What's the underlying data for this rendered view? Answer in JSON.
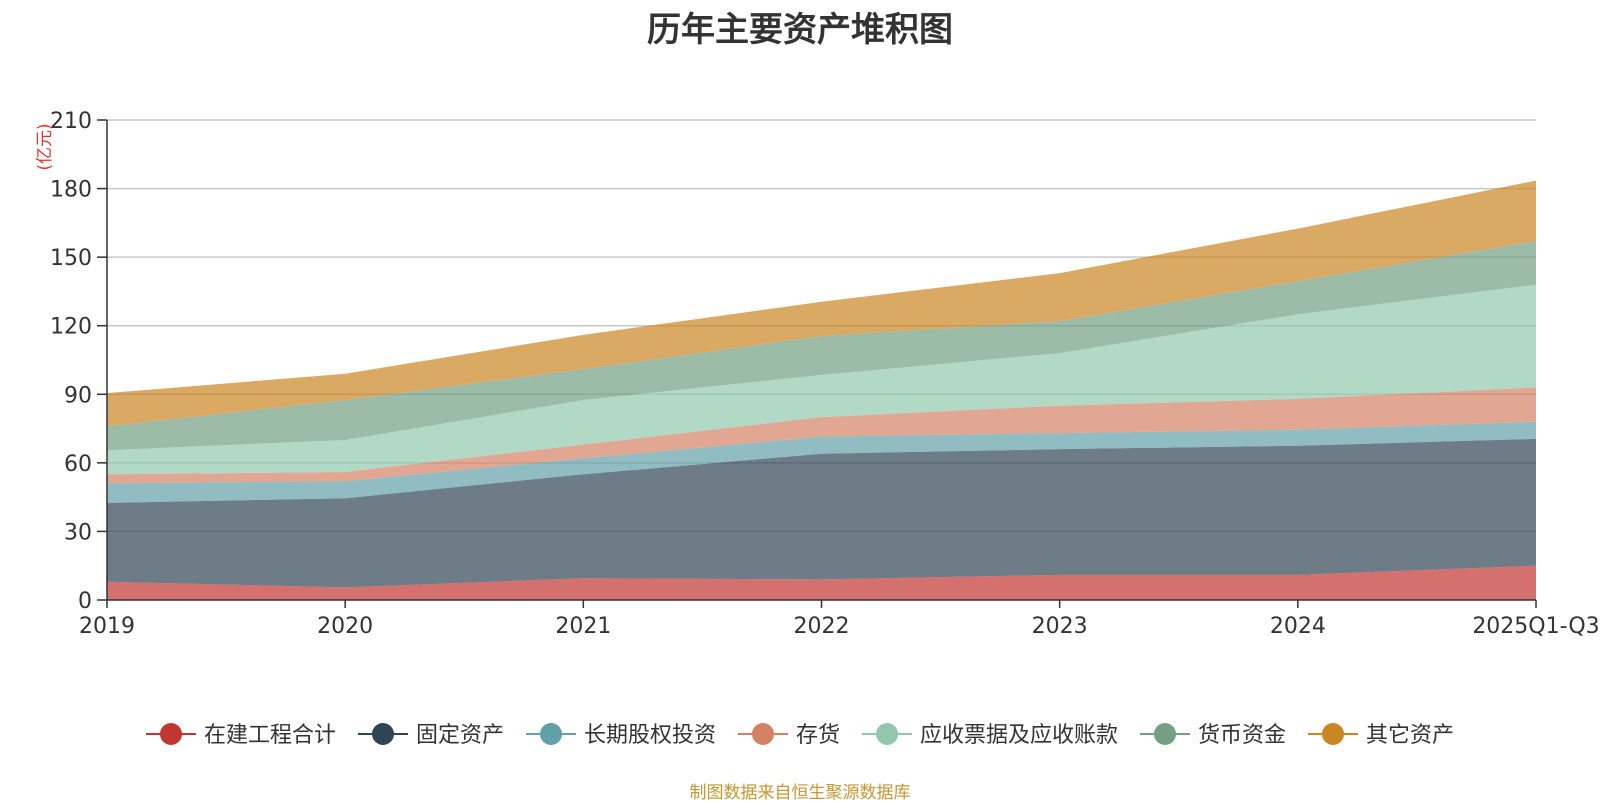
{
  "chart_data": {
    "type": "area",
    "stacked": true,
    "title": "历年主要资产堆积图",
    "unit_label": "(亿元)",
    "categories": [
      "2019",
      "2020",
      "2021",
      "2022",
      "2023",
      "2024",
      "2025Q1-Q3"
    ],
    "ylim": [
      0,
      210
    ],
    "yticks": [
      0,
      30,
      60,
      90,
      120,
      150,
      180,
      210
    ],
    "grid": true,
    "legend_position": "bottom",
    "series": [
      {
        "name": "在建工程合计",
        "color": "#c23531",
        "values": [
          8,
          5.5,
          9.5,
          9,
          11,
          11,
          15
        ]
      },
      {
        "name": "固定资产",
        "color": "#2f4554",
        "values": [
          34.5,
          39,
          45.5,
          55,
          55,
          56.5,
          55.5
        ]
      },
      {
        "name": "长期股权投资",
        "color": "#61a0a8",
        "values": [
          8.5,
          7.5,
          7,
          7.5,
          7,
          7,
          7.5
        ]
      },
      {
        "name": "存货",
        "color": "#d48265",
        "values": [
          4,
          4,
          6,
          8.5,
          12,
          13.5,
          15
        ]
      },
      {
        "name": "应收票据及应收账款",
        "color": "#91c7ae",
        "values": [
          10.5,
          14,
          19.5,
          18.5,
          23,
          37,
          45
        ]
      },
      {
        "name": "货币资金",
        "color": "#749f83",
        "values": [
          10.5,
          17.5,
          13.5,
          17,
          14,
          14.5,
          19
        ]
      },
      {
        "name": "其它资产",
        "color": "#ca8622",
        "values": [
          14.5,
          11.5,
          15,
          15,
          21,
          23,
          26.5
        ]
      }
    ],
    "source_note": "制图数据来自恒生聚源数据库"
  }
}
